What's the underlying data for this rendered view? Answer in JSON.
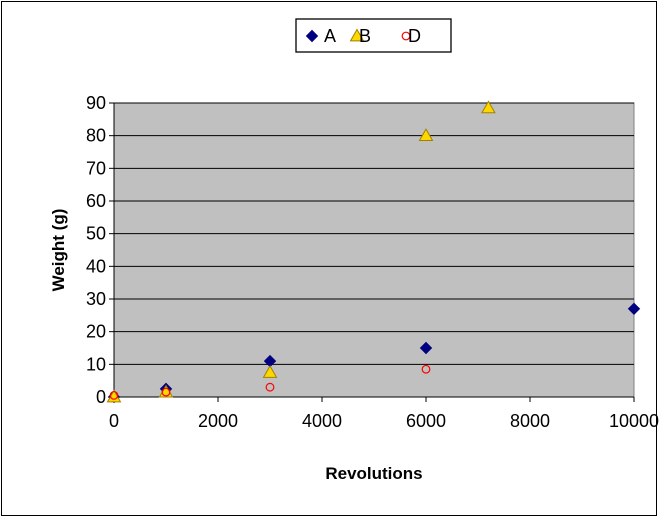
{
  "chart_data": {
    "type": "scatter",
    "title": "",
    "xlabel": "Revolutions",
    "ylabel": "Weight (g)",
    "xlim": [
      0,
      10000
    ],
    "ylim": [
      0,
      90
    ],
    "xticks": [
      0,
      2000,
      4000,
      6000,
      8000,
      10000
    ],
    "yticks": [
      0,
      10,
      20,
      30,
      40,
      50,
      60,
      70,
      80,
      90
    ],
    "grid": "horizontal",
    "legend_position": "top",
    "plot_background": "#c0c0c0",
    "series": [
      {
        "name": "A",
        "marker": "diamond",
        "color": "#000080",
        "points": [
          [
            0,
            0
          ],
          [
            1000,
            2.5
          ],
          [
            3000,
            11
          ],
          [
            6000,
            15
          ],
          [
            10000,
            27
          ]
        ]
      },
      {
        "name": "B",
        "marker": "triangle",
        "color": "#ffd700",
        "stroke": "#a08000",
        "points": [
          [
            0,
            0
          ],
          [
            1000,
            1.5
          ],
          [
            3000,
            7.5
          ],
          [
            6000,
            80
          ],
          [
            7200,
            88.5
          ]
        ]
      },
      {
        "name": "D",
        "marker": "circle",
        "color": "#ff0000",
        "points": [
          [
            0,
            0.5
          ],
          [
            1000,
            1.5
          ],
          [
            3000,
            3
          ],
          [
            6000,
            8.5
          ]
        ]
      }
    ]
  }
}
